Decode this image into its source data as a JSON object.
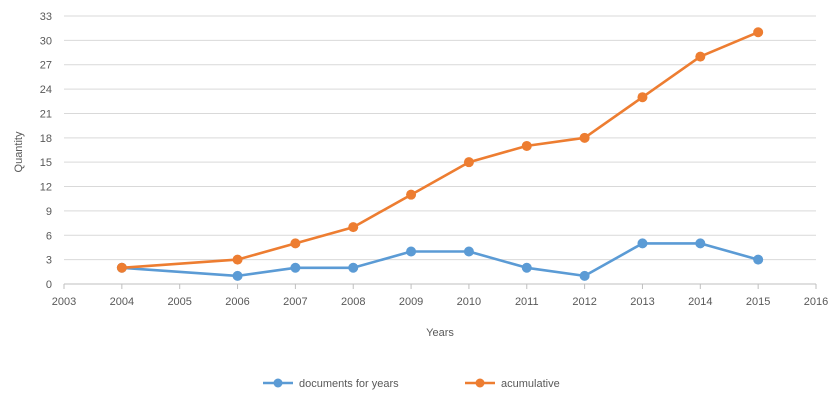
{
  "chart_data": {
    "type": "line",
    "title": "",
    "xlabel": "Years",
    "ylabel": "Quantity",
    "xlim": [
      2003,
      2016
    ],
    "ylim": [
      0,
      33
    ],
    "x_ticks": [
      "2003",
      "2004",
      "2005",
      "2006",
      "2007",
      "2008",
      "2009",
      "2010",
      "2011",
      "2012",
      "2013",
      "2014",
      "2015",
      "2016"
    ],
    "y_ticks": [
      "0",
      "3",
      "6",
      "9",
      "12",
      "15",
      "18",
      "21",
      "24",
      "27",
      "30",
      "33"
    ],
    "grid": true,
    "legend_position": "bottom",
    "series": [
      {
        "name": "documents for years",
        "color": "#5b9bd5",
        "x": [
          2004,
          2006,
          2007,
          2008,
          2009,
          2010,
          2011,
          2012,
          2013,
          2014,
          2015
        ],
        "values": [
          2,
          1,
          2,
          2,
          4,
          4,
          2,
          1,
          5,
          5,
          3
        ]
      },
      {
        "name": "acumulative",
        "color": "#ed7d31",
        "x": [
          2004,
          2006,
          2007,
          2008,
          2009,
          2010,
          2011,
          2012,
          2013,
          2014,
          2015
        ],
        "values": [
          2,
          3,
          5,
          7,
          11,
          15,
          17,
          18,
          23,
          28,
          31
        ]
      }
    ]
  }
}
